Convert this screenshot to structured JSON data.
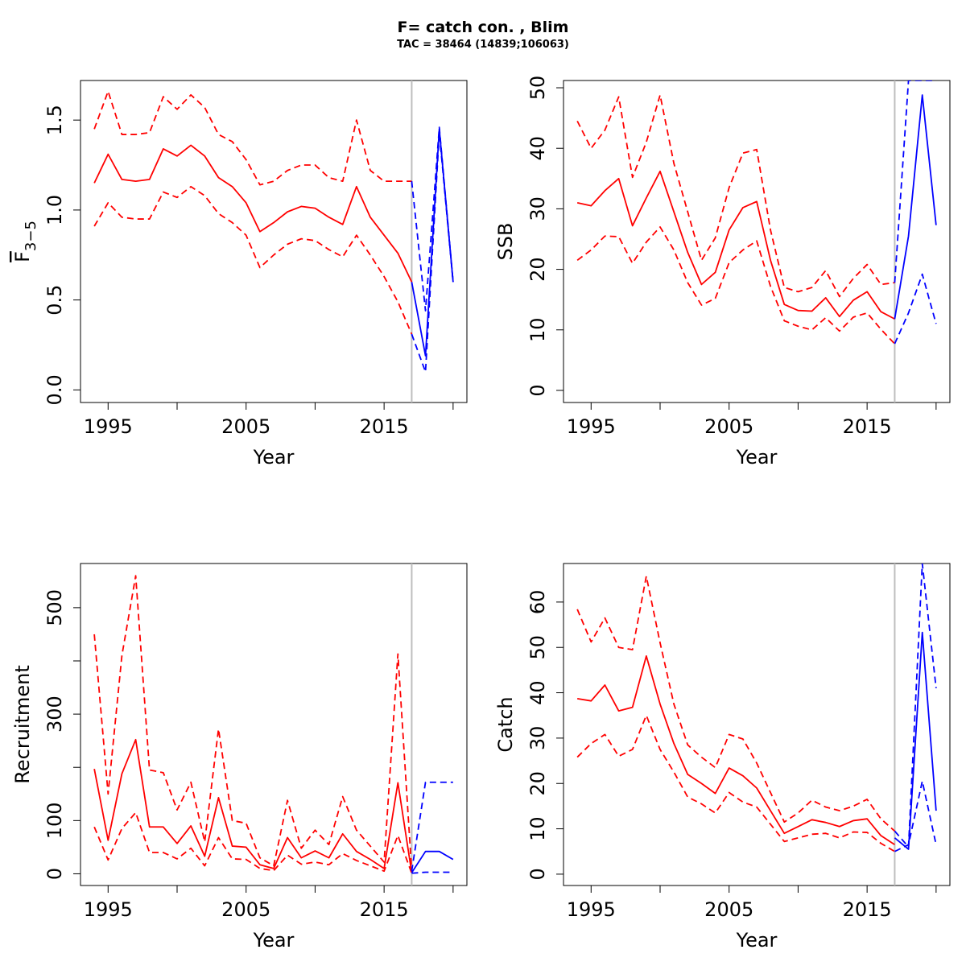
{
  "title": "F= catch con. , Blim",
  "subtitle": "TAC = 38464 (14839;106063)",
  "colors": {
    "historical": "#ff0000",
    "projection": "#0000ff",
    "divider": "#bebebe",
    "frame": "#000000"
  },
  "chart_data": [
    {
      "type": "line",
      "id": "fbar",
      "xlabel": "Year",
      "ylabel_main": "F",
      "ylabel_sub": "3−5",
      "ylabel_overline": true,
      "xlim": [
        1993,
        2021
      ],
      "ylim": [
        -0.07,
        1.72
      ],
      "xticks": [
        1995,
        2000,
        2005,
        2010,
        2015,
        2020
      ],
      "xtick_labels": [
        "1995",
        "",
        "2005",
        "",
        "2015",
        ""
      ],
      "yticks": [
        0,
        0.5,
        1.0,
        1.5
      ],
      "ytick_labels": [
        "0.0",
        "0.5",
        "1.0",
        "1.5"
      ],
      "divider_year": 2017,
      "series": [
        {
          "role": "estimate",
          "style": "solid",
          "color": "red",
          "x": [
            1994,
            1995,
            1996,
            1997,
            1998,
            1999,
            2000,
            2001,
            2002,
            2003,
            2004,
            2005,
            2006,
            2007,
            2008,
            2009,
            2010,
            2011,
            2012,
            2013,
            2014,
            2015,
            2016,
            2017
          ],
          "values": [
            1.15,
            1.31,
            1.17,
            1.16,
            1.17,
            1.34,
            1.3,
            1.36,
            1.3,
            1.18,
            1.13,
            1.04,
            0.88,
            0.93,
            0.99,
            1.02,
            1.01,
            0.96,
            0.92,
            1.13,
            0.96,
            0.86,
            0.76,
            0.6
          ]
        },
        {
          "role": "upper",
          "style": "dashed",
          "color": "red",
          "x": [
            1994,
            1995,
            1996,
            1997,
            1998,
            1999,
            2000,
            2001,
            2002,
            2003,
            2004,
            2005,
            2006,
            2007,
            2008,
            2009,
            2010,
            2011,
            2012,
            2013,
            2014,
            2015,
            2016,
            2017
          ],
          "values": [
            1.45,
            1.66,
            1.42,
            1.42,
            1.43,
            1.63,
            1.56,
            1.64,
            1.57,
            1.42,
            1.38,
            1.28,
            1.14,
            1.16,
            1.22,
            1.25,
            1.25,
            1.18,
            1.16,
            1.5,
            1.22,
            1.16,
            1.16,
            1.16
          ]
        },
        {
          "role": "lower",
          "style": "dashed",
          "color": "red",
          "x": [
            1994,
            1995,
            1996,
            1997,
            1998,
            1999,
            2000,
            2001,
            2002,
            2003,
            2004,
            2005,
            2006,
            2007,
            2008,
            2009,
            2010,
            2011,
            2012,
            2013,
            2014,
            2015,
            2016,
            2017
          ],
          "values": [
            0.91,
            1.04,
            0.96,
            0.95,
            0.95,
            1.1,
            1.07,
            1.13,
            1.08,
            0.98,
            0.93,
            0.86,
            0.68,
            0.75,
            0.81,
            0.84,
            0.83,
            0.78,
            0.74,
            0.86,
            0.75,
            0.63,
            0.49,
            0.31
          ]
        },
        {
          "role": "projection",
          "style": "solid",
          "color": "blue",
          "x": [
            2017,
            2018,
            2019,
            2020
          ],
          "values": [
            0.6,
            0.19,
            1.45,
            0.6
          ]
        },
        {
          "role": "projection-upper",
          "style": "dashed",
          "color": "blue",
          "x": [
            2017,
            2018,
            2019,
            2020
          ],
          "values": [
            1.16,
            0.44,
            1.46,
            0.6
          ]
        },
        {
          "role": "projection-lower",
          "style": "dashed",
          "color": "blue",
          "x": [
            2017,
            2018,
            2019,
            2020
          ],
          "values": [
            0.31,
            0.1,
            1.43,
            0.6
          ]
        }
      ]
    },
    {
      "type": "line",
      "id": "ssb",
      "xlabel": "Year",
      "ylabel_main": "SSB",
      "xlim": [
        1993,
        2021
      ],
      "ylim": [
        -2,
        51.2
      ],
      "xticks": [
        1995,
        2000,
        2005,
        2010,
        2015,
        2020
      ],
      "xtick_labels": [
        "1995",
        "",
        "2005",
        "",
        "2015",
        ""
      ],
      "yticks": [
        0,
        10,
        20,
        30,
        40,
        50
      ],
      "ytick_labels": [
        "0",
        "10",
        "20",
        "30",
        "40",
        "50"
      ],
      "divider_year": 2017,
      "series": [
        {
          "role": "estimate",
          "style": "solid",
          "color": "red",
          "x": [
            1994,
            1995,
            1996,
            1997,
            1998,
            1999,
            2000,
            2001,
            2002,
            2003,
            2004,
            2005,
            2006,
            2007,
            2008,
            2009,
            2010,
            2011,
            2012,
            2013,
            2014,
            2015,
            2016,
            2017
          ],
          "values": [
            31.0,
            30.5,
            33.0,
            35.0,
            27.2,
            31.8,
            36.2,
            29.5,
            22.8,
            17.5,
            19.5,
            26.5,
            30.2,
            31.2,
            21.5,
            14.2,
            13.2,
            13.1,
            15.3,
            12.2,
            14.9,
            16.3,
            13.0,
            11.8
          ]
        },
        {
          "role": "upper",
          "style": "dashed",
          "color": "red",
          "x": [
            1994,
            1995,
            1996,
            1997,
            1998,
            1999,
            2000,
            2001,
            2002,
            2003,
            2004,
            2005,
            2006,
            2007,
            2008,
            2009,
            2010,
            2011,
            2012,
            2013,
            2014,
            2015,
            2016,
            2017
          ],
          "values": [
            44.5,
            40.0,
            43.0,
            48.5,
            35.2,
            41.0,
            48.8,
            37.5,
            29.5,
            21.5,
            25.2,
            33.5,
            39.2,
            39.8,
            26.5,
            17.0,
            16.3,
            17.0,
            19.8,
            15.5,
            18.5,
            20.8,
            17.5,
            17.8
          ]
        },
        {
          "role": "lower",
          "style": "dashed",
          "color": "red",
          "x": [
            1994,
            1995,
            1996,
            1997,
            1998,
            1999,
            2000,
            2001,
            2002,
            2003,
            2004,
            2005,
            2006,
            2007,
            2008,
            2009,
            2010,
            2011,
            2012,
            2013,
            2014,
            2015,
            2016,
            2017
          ],
          "values": [
            21.5,
            23.2,
            25.5,
            25.4,
            21.0,
            24.5,
            27.0,
            23.2,
            17.8,
            14.1,
            15.2,
            21.1,
            23.2,
            24.7,
            17.2,
            11.5,
            10.6,
            10.0,
            12.0,
            9.8,
            12.1,
            12.8,
            10.1,
            7.7
          ]
        },
        {
          "role": "projection",
          "style": "solid",
          "color": "blue",
          "x": [
            2017,
            2018,
            2019,
            2020
          ],
          "values": [
            11.8,
            25.5,
            48.8,
            27.3
          ]
        },
        {
          "role": "projection-upper",
          "style": "dashed",
          "color": "blue",
          "x": [
            2017,
            2018,
            2019,
            2020
          ],
          "values": [
            17.8,
            51.2,
            51.2,
            51.2
          ]
        },
        {
          "role": "projection-lower",
          "style": "dashed",
          "color": "blue",
          "x": [
            2017,
            2018,
            2019,
            2020
          ],
          "values": [
            7.7,
            12.8,
            19.2,
            11.0
          ]
        }
      ]
    },
    {
      "type": "line",
      "id": "recruitment",
      "xlabel": "Year",
      "ylabel_main": "Recruitment",
      "xlim": [
        1993,
        2021
      ],
      "ylim": [
        -22,
        583
      ],
      "xticks": [
        1995,
        2000,
        2005,
        2010,
        2015,
        2020
      ],
      "xtick_labels": [
        "1995",
        "",
        "2005",
        "",
        "2015",
        ""
      ],
      "yticks": [
        0,
        100,
        200,
        300,
        400,
        500
      ],
      "ytick_labels": [
        "0",
        "100",
        "",
        "300",
        "",
        "500"
      ],
      "divider_year": 2017,
      "series": [
        {
          "role": "estimate",
          "style": "solid",
          "color": "red",
          "x": [
            1994,
            1995,
            1996,
            1997,
            1998,
            1999,
            2000,
            2001,
            2002,
            2003,
            2004,
            2005,
            2006,
            2007,
            2008,
            2009,
            2010,
            2011,
            2012,
            2013,
            2014,
            2015,
            2016,
            2017
          ],
          "values": [
            197,
            63,
            188,
            252,
            88,
            88,
            57,
            90,
            33,
            143,
            52,
            50,
            17,
            10,
            68,
            30,
            43,
            30,
            75,
            42,
            27,
            10,
            171,
            2
          ]
        },
        {
          "role": "upper",
          "style": "dashed",
          "color": "red",
          "x": [
            1994,
            1995,
            1996,
            1997,
            1998,
            1999,
            2000,
            2001,
            2002,
            2003,
            2004,
            2005,
            2006,
            2007,
            2008,
            2009,
            2010,
            2011,
            2012,
            2013,
            2014,
            2015,
            2016,
            2017
          ],
          "values": [
            450,
            150,
            410,
            560,
            195,
            190,
            120,
            172,
            60,
            272,
            100,
            95,
            30,
            15,
            138,
            48,
            82,
            55,
            145,
            82,
            52,
            22,
            413,
            5
          ]
        },
        {
          "role": "lower",
          "style": "dashed",
          "color": "red",
          "x": [
            1994,
            1995,
            1996,
            1997,
            1998,
            1999,
            2000,
            2001,
            2002,
            2003,
            2004,
            2005,
            2006,
            2007,
            2008,
            2009,
            2010,
            2011,
            2012,
            2013,
            2014,
            2015,
            2016,
            2017
          ],
          "values": [
            88,
            26,
            85,
            115,
            40,
            40,
            28,
            48,
            15,
            68,
            28,
            27,
            10,
            6,
            35,
            18,
            22,
            17,
            38,
            25,
            15,
            5,
            72,
            1
          ]
        },
        {
          "role": "projection",
          "style": "solid",
          "color": "blue",
          "x": [
            2017,
            2018,
            2019,
            2020
          ],
          "values": [
            2,
            42,
            42,
            27
          ]
        },
        {
          "role": "projection-upper",
          "style": "dashed",
          "color": "blue",
          "x": [
            2017,
            2018,
            2019,
            2020
          ],
          "values": [
            5,
            172,
            172,
            172
          ]
        },
        {
          "role": "projection-lower",
          "style": "dashed",
          "color": "blue",
          "x": [
            2017,
            2018,
            2019,
            2020
          ],
          "values": [
            1,
            3,
            3,
            3
          ]
        }
      ]
    },
    {
      "type": "line",
      "id": "catch",
      "xlabel": "Year",
      "ylabel_main": "Catch",
      "xlim": [
        1993,
        2021
      ],
      "ylim": [
        -2.5,
        68.5
      ],
      "xticks": [
        1995,
        2000,
        2005,
        2010,
        2015,
        2020
      ],
      "xtick_labels": [
        "1995",
        "",
        "2005",
        "",
        "2015",
        ""
      ],
      "yticks": [
        0,
        10,
        20,
        30,
        40,
        50,
        60
      ],
      "ytick_labels": [
        "0",
        "10",
        "20",
        "30",
        "40",
        "50",
        "60"
      ],
      "divider_year": 2017,
      "series": [
        {
          "role": "estimate",
          "style": "solid",
          "color": "red",
          "x": [
            1994,
            1995,
            1996,
            1997,
            1998,
            1999,
            2000,
            2001,
            2002,
            2003,
            2004,
            2005,
            2006,
            2007,
            2008,
            2009,
            2010,
            2011,
            2012,
            2013,
            2014,
            2015,
            2016,
            2017
          ],
          "values": [
            38.7,
            38.2,
            41.7,
            36.0,
            36.8,
            48.1,
            37.5,
            28.8,
            22.0,
            20.0,
            17.8,
            23.4,
            21.7,
            19.0,
            14.0,
            9.0,
            10.5,
            12.0,
            11.4,
            10.5,
            11.8,
            12.2,
            8.5,
            6.5
          ]
        },
        {
          "role": "upper",
          "style": "dashed",
          "color": "red",
          "x": [
            1994,
            1995,
            1996,
            1997,
            1998,
            1999,
            2000,
            2001,
            2002,
            2003,
            2004,
            2005,
            2006,
            2007,
            2008,
            2009,
            2010,
            2011,
            2012,
            2013,
            2014,
            2015,
            2016,
            2017
          ],
          "values": [
            58.4,
            51.2,
            56.5,
            50.0,
            49.5,
            65.7,
            51.0,
            37.5,
            28.5,
            25.8,
            23.5,
            30.8,
            29.8,
            24.5,
            18.0,
            11.5,
            13.5,
            16.3,
            14.8,
            14.0,
            15.0,
            16.5,
            12.2,
            9.5
          ]
        },
        {
          "role": "lower",
          "style": "dashed",
          "color": "red",
          "x": [
            1994,
            1995,
            1996,
            1997,
            1998,
            1999,
            2000,
            2001,
            2002,
            2003,
            2004,
            2005,
            2006,
            2007,
            2008,
            2009,
            2010,
            2011,
            2012,
            2013,
            2014,
            2015,
            2016,
            2017
          ],
          "values": [
            25.8,
            28.8,
            30.8,
            26.0,
            27.5,
            35.0,
            27.5,
            22.5,
            17.0,
            15.5,
            13.5,
            18.0,
            15.9,
            14.8,
            11.0,
            7.2,
            8.0,
            8.8,
            9.0,
            8.0,
            9.3,
            9.2,
            6.8,
            5.0
          ]
        },
        {
          "role": "projection",
          "style": "solid",
          "color": "blue",
          "x": [
            2017,
            2018,
            2019,
            2020
          ],
          "values": [
            8.0,
            5.5,
            53.3,
            14.0
          ]
        },
        {
          "role": "projection-upper",
          "style": "dashed",
          "color": "blue",
          "x": [
            2017,
            2018,
            2019,
            2020
          ],
          "values": [
            9.5,
            6.0,
            68.5,
            41.0
          ]
        },
        {
          "role": "projection-lower",
          "style": "dashed",
          "color": "blue",
          "x": [
            2017,
            2018,
            2019,
            2020
          ],
          "values": [
            5.0,
            6.5,
            20.5,
            6.5
          ]
        }
      ]
    }
  ]
}
